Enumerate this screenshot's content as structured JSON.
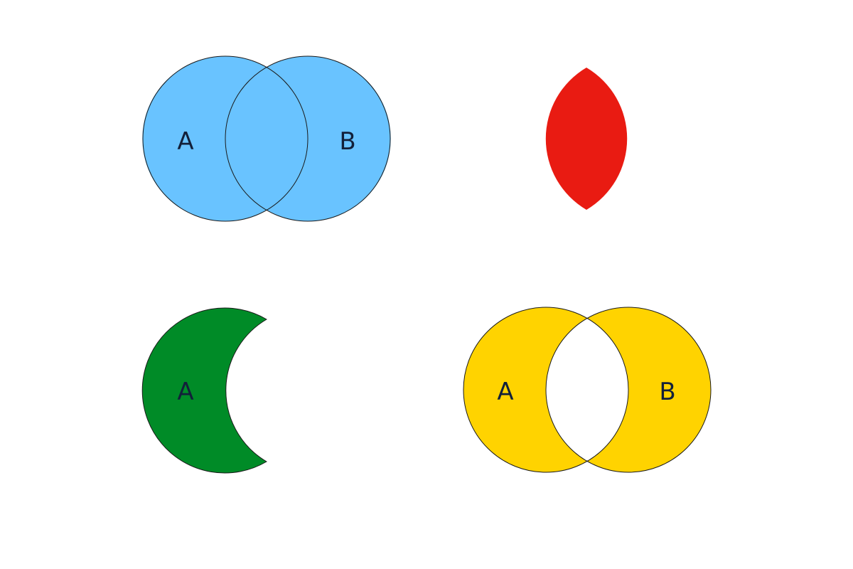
{
  "colors": {
    "union": "#69c3ff",
    "intersection": "#e91b12",
    "difference": "#008b27",
    "symmetric_difference": "#ffd300",
    "outline": "#1a1a1a",
    "label": "#12203a"
  },
  "diagrams": {
    "union": {
      "label_a": "A",
      "label_b": "B"
    },
    "intersection": {},
    "difference": {
      "label_a": "A"
    },
    "symmetric_difference": {
      "label_a": "A",
      "label_b": "B"
    }
  }
}
